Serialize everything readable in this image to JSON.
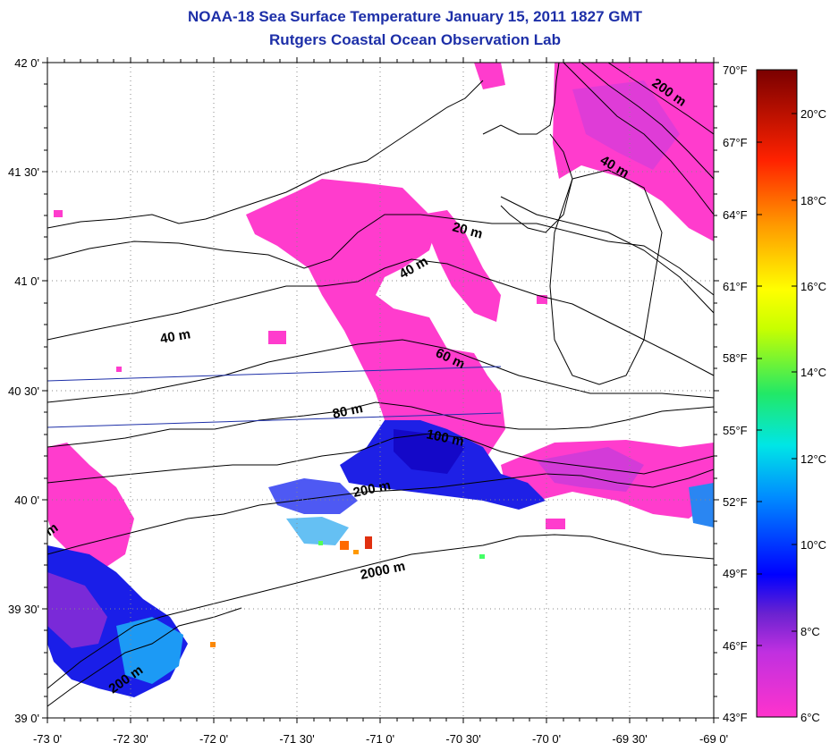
{
  "title": {
    "line1": "NOAA-18 Sea Surface Temperature January 15, 2011 1827 GMT",
    "line2": "Rutgers Coastal Ocean Observation Lab"
  },
  "map": {
    "lat_labels": [
      "42 0'",
      "41 30'",
      "41 0'",
      "40 30'",
      "40 0'",
      "39 30'",
      "39 0'"
    ],
    "lon_labels": [
      "-73 0'",
      "-72 30'",
      "-72 0'",
      "-71 30'",
      "-71 0'",
      "-70 30'",
      "-70 0'",
      "-69 30'",
      "-69 0'"
    ],
    "contour_labels": [
      {
        "name": "contour-label-20m-north",
        "text": "200 m"
      },
      {
        "name": "contour-label-40m-ne",
        "text": "40 m"
      },
      {
        "name": "contour-label-20m",
        "text": "20 m"
      },
      {
        "name": "contour-label-40m-center",
        "text": "40 m"
      },
      {
        "name": "contour-label-40m-west",
        "text": "40 m"
      },
      {
        "name": "contour-label-60m",
        "text": "60 m"
      },
      {
        "name": "contour-label-80m",
        "text": "80 m"
      },
      {
        "name": "contour-label-100m",
        "text": "100 m"
      },
      {
        "name": "contour-label-200m",
        "text": "200 m"
      },
      {
        "name": "contour-label-2000m",
        "text": "2000 m"
      },
      {
        "name": "contour-label-200m-sw",
        "text": "200 m"
      },
      {
        "name": "contour-label-m-edge",
        "text": "m"
      }
    ]
  },
  "colorbar": {
    "fahrenheit_labels": [
      "70°F",
      "67°F",
      "64°F",
      "61°F",
      "58°F",
      "55°F",
      "52°F",
      "49°F",
      "46°F",
      "43°F"
    ],
    "celsius_labels": [
      "20°C",
      "18°C",
      "16°C",
      "14°C",
      "12°C",
      "10°C",
      "8°C",
      "6°C"
    ],
    "colors": {
      "min": "#ff33cc",
      "c1": "#7a2bd6",
      "c2": "#0000ff",
      "c3": "#00a8ff",
      "c4": "#00ffee",
      "c5": "#33ff44",
      "c6": "#ffff00",
      "c7": "#ff9900",
      "c8": "#ff0000",
      "max": "#7a0000"
    }
  }
}
